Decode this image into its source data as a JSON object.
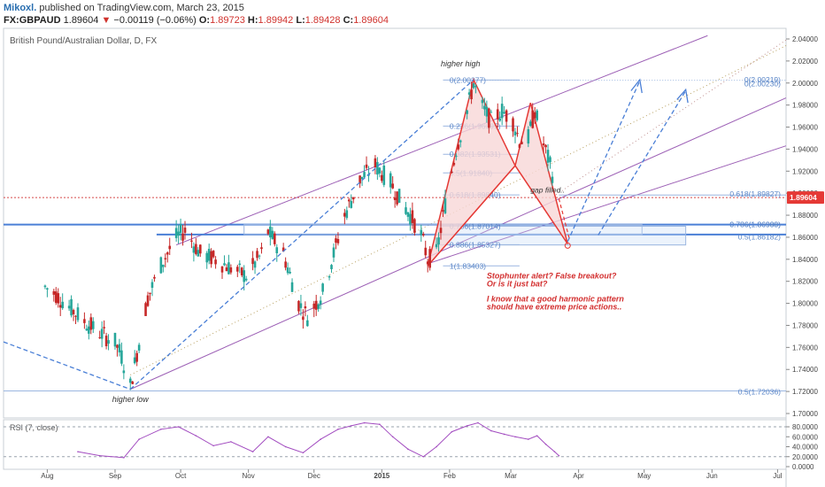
{
  "header": {
    "author": "Mikoxl.",
    "published": "published on TradingView.com, March 23, 2015",
    "symbol": "FX:GBPAUD",
    "last": "1.89604",
    "change_arrow": "▼",
    "change": "−0.00119 (−0.06%)",
    "open_label": "O:",
    "open": "1.89723",
    "high_label": "H:",
    "high": "1.89942",
    "low_label": "L:",
    "low": "1.89428",
    "close_label": "C:",
    "close": "1.89604"
  },
  "chart_data": {
    "type": "candlestick",
    "title": "British Pound/Australian Dollar, D, FX",
    "xlabel": "",
    "ylabel": "",
    "ylim": [
      1.7,
      2.045
    ],
    "y_ticks": [
      "2.04000",
      "2.02000",
      "2.00000",
      "1.98000",
      "1.96000",
      "1.94000",
      "1.92000",
      "1.90000",
      "1.88000",
      "1.86000",
      "1.84000",
      "1.82000",
      "1.80000",
      "1.78000",
      "1.76000",
      "1.74000",
      "1.72000",
      "1.70000"
    ],
    "x_ticks": [
      "Aug",
      "Sep",
      "Oct",
      "Nov",
      "Dec",
      "2015",
      "Feb",
      "Mar",
      "Apr",
      "May",
      "Jun",
      "Jul"
    ],
    "last_price_label": "1.89604",
    "price_path": [
      [
        "2014-07-31",
        1.815
      ],
      [
        "2014-08-05",
        1.808
      ],
      [
        "2014-08-12",
        1.795
      ],
      [
        "2014-08-19",
        1.782
      ],
      [
        "2014-08-26",
        1.772
      ],
      [
        "2014-09-01",
        1.765
      ],
      [
        "2014-09-04",
        1.752
      ],
      [
        "2014-09-08",
        1.725
      ],
      [
        "2014-09-11",
        1.755
      ],
      [
        "2014-09-16",
        1.805
      ],
      [
        "2014-09-22",
        1.835
      ],
      [
        "2014-09-29",
        1.86
      ],
      [
        "2014-10-03",
        1.866
      ],
      [
        "2014-10-10",
        1.845
      ],
      [
        "2014-10-17",
        1.84
      ],
      [
        "2014-10-24",
        1.832
      ],
      [
        "2014-10-31",
        1.825
      ],
      [
        "2014-11-07",
        1.845
      ],
      [
        "2014-11-10",
        1.865
      ],
      [
        "2014-11-17",
        1.845
      ],
      [
        "2014-11-24",
        1.8
      ],
      [
        "2014-11-28",
        1.788
      ],
      [
        "2014-12-05",
        1.81
      ],
      [
        "2014-12-10",
        1.845
      ],
      [
        "2014-12-15",
        1.88
      ],
      [
        "2014-12-22",
        1.912
      ],
      [
        "2014-12-29",
        1.925
      ],
      [
        "2015-01-05",
        1.91
      ],
      [
        "2015-01-09",
        1.895
      ],
      [
        "2015-01-14",
        1.88
      ],
      [
        "2015-01-19",
        1.862
      ],
      [
        "2015-01-22",
        1.84
      ],
      [
        "2015-01-26",
        1.845
      ],
      [
        "2015-01-30",
        1.89
      ],
      [
        "2015-02-04",
        1.94
      ],
      [
        "2015-02-09",
        1.975
      ],
      [
        "2015-02-12",
        2.0
      ],
      [
        "2015-02-16",
        1.978
      ],
      [
        "2015-02-20",
        1.965
      ],
      [
        "2015-02-25",
        1.975
      ],
      [
        "2015-03-02",
        1.965
      ],
      [
        "2015-03-05",
        1.948
      ],
      [
        "2015-03-09",
        1.95
      ],
      [
        "2015-03-12",
        1.975
      ],
      [
        "2015-03-16",
        1.945
      ],
      [
        "2015-03-19",
        1.925
      ],
      [
        "2015-03-23",
        1.896
      ]
    ],
    "fib_labels": [
      "0(2.00277)",
      "0.236(1.96095)",
      "0.382(1.93531)",
      "0.5(1.91840)",
      "0.618(1.89840)",
      "0.786(1.87014)",
      "0.886(1.85327)",
      "1(1.83403)"
    ],
    "right_fib_labels": [
      "0(2.00219)",
      "0(2.00230)",
      "0.618(1.89827)",
      "0.786(1.86999)",
      "0.786(1.86988)",
      "0.5(1.86182)",
      "0.5(1.72036)"
    ],
    "rsi": {
      "title": "RSI (7, close)",
      "y_ticks": [
        "80.0000",
        "60.0000",
        "40.0000",
        "20.0000",
        "0.0000"
      ],
      "series": [
        [
          "2014-08-15",
          30
        ],
        [
          "2014-08-25",
          22
        ],
        [
          "2014-09-05",
          18
        ],
        [
          "2014-09-12",
          55
        ],
        [
          "2014-09-22",
          75
        ],
        [
          "2014-09-30",
          80
        ],
        [
          "2014-10-08",
          62
        ],
        [
          "2014-10-16",
          42
        ],
        [
          "2014-10-24",
          50
        ],
        [
          "2014-11-03",
          30
        ],
        [
          "2014-11-10",
          60
        ],
        [
          "2014-11-18",
          40
        ],
        [
          "2014-11-26",
          28
        ],
        [
          "2014-12-04",
          55
        ],
        [
          "2014-12-12",
          75
        ],
        [
          "2014-12-18",
          82
        ],
        [
          "2014-12-24",
          88
        ],
        [
          "2014-12-31",
          85
        ],
        [
          "2015-01-06",
          60
        ],
        [
          "2015-01-13",
          35
        ],
        [
          "2015-01-20",
          20
        ],
        [
          "2015-01-26",
          40
        ],
        [
          "2015-02-02",
          70
        ],
        [
          "2015-02-09",
          82
        ],
        [
          "2015-02-14",
          88
        ],
        [
          "2015-02-20",
          72
        ],
        [
          "2015-02-26",
          65
        ],
        [
          "2015-03-03",
          60
        ],
        [
          "2015-03-09",
          55
        ],
        [
          "2015-03-13",
          62
        ],
        [
          "2015-03-17",
          45
        ],
        [
          "2015-03-21",
          30
        ],
        [
          "2015-03-23",
          22
        ]
      ]
    }
  },
  "annotations": {
    "higher_high": "higher high",
    "higher_low": "higher low",
    "gap_filled": "gap filled..",
    "alert1": "Stophunter alert? False breakout?",
    "alert2": "Or is it just bat?",
    "note1": "I know that a good harmonic pattern",
    "note2": "should have extreme price actions.."
  },
  "colors": {
    "up": "#26a69a",
    "down": "#c62828",
    "channel": "#9c5fb5",
    "blue": "#4a7fd6",
    "pattern": "#e53935",
    "fill": "#f8d7d7",
    "rsi": "#a24cc0",
    "text_red": "#d32f2f",
    "badge": "#e53935"
  }
}
